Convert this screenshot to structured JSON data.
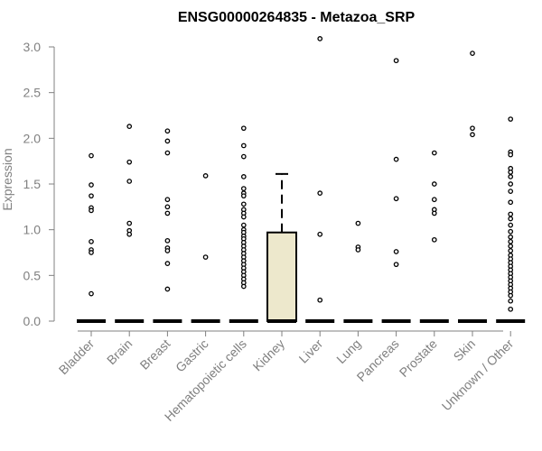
{
  "chart_data": {
    "type": "box",
    "title": "ENSG00000264835 - Metazoa_SRP",
    "ylabel": "Expression",
    "xlabel": "",
    "ylim": [
      0,
      3.1
    ],
    "yticks": [
      "0.0",
      "0.5",
      "1.0",
      "1.5",
      "2.0",
      "2.5",
      "3.0"
    ],
    "ytick_values": [
      0,
      0.5,
      1.0,
      1.5,
      2.0,
      2.5,
      3.0
    ],
    "categories": [
      "Bladder",
      "Brain",
      "Breast",
      "Gastric",
      "Hematopoietic cells",
      "Kidney",
      "Liver",
      "Lung",
      "Pancreas",
      "Prostate",
      "Skin",
      "Unknown / Other"
    ],
    "box_fill": "#ede8cc",
    "boxes": [
      {
        "category": "Bladder",
        "min": 0,
        "q1": 0,
        "median": 0,
        "q3": 0,
        "max": 0,
        "outliers": [
          1.81,
          1.49,
          1.37,
          1.24,
          1.21,
          0.87,
          0.78,
          0.75,
          0.3
        ]
      },
      {
        "category": "Brain",
        "min": 0,
        "q1": 0,
        "median": 0,
        "q3": 0,
        "max": 0,
        "outliers": [
          2.13,
          1.74,
          1.53,
          1.07,
          0.99,
          0.95
        ]
      },
      {
        "category": "Breast",
        "min": 0,
        "q1": 0,
        "median": 0,
        "q3": 0,
        "max": 0,
        "outliers": [
          2.08,
          1.97,
          1.84,
          1.33,
          1.25,
          1.18,
          0.88,
          0.8,
          0.77,
          0.63,
          0.35
        ]
      },
      {
        "category": "Gastric",
        "min": 0,
        "q1": 0,
        "median": 0,
        "q3": 0,
        "max": 0,
        "outliers": [
          1.59,
          0.7
        ]
      },
      {
        "category": "Hematopoietic cells",
        "min": 0,
        "q1": 0,
        "median": 0,
        "q3": 0,
        "max": 0,
        "outliers": [
          2.11,
          1.92,
          1.8,
          1.58,
          1.45,
          1.4,
          1.37,
          1.28,
          1.22,
          1.18,
          1.14,
          1.05,
          1.0,
          0.97,
          0.93,
          0.9,
          0.86,
          0.82,
          0.78,
          0.74,
          0.7,
          0.66,
          0.62,
          0.58,
          0.54,
          0.5,
          0.46,
          0.42,
          0.38
        ]
      },
      {
        "category": "Kidney",
        "min": 0,
        "q1": 0,
        "median": 0,
        "q3": 0.97,
        "max": 1.61,
        "outliers": []
      },
      {
        "category": "Liver",
        "min": 0,
        "q1": 0,
        "median": 0,
        "q3": 0,
        "max": 0,
        "outliers": [
          3.09,
          1.4,
          0.95,
          0.23
        ]
      },
      {
        "category": "Lung",
        "min": 0,
        "q1": 0,
        "median": 0,
        "q3": 0,
        "max": 0,
        "outliers": [
          1.07,
          0.81,
          0.78
        ]
      },
      {
        "category": "Pancreas",
        "min": 0,
        "q1": 0,
        "median": 0,
        "q3": 0,
        "max": 0,
        "outliers": [
          2.85,
          1.77,
          1.34,
          0.76,
          0.62
        ]
      },
      {
        "category": "Prostate",
        "min": 0,
        "q1": 0,
        "median": 0,
        "q3": 0,
        "max": 0,
        "outliers": [
          1.84,
          1.5,
          1.33,
          1.22,
          1.18,
          0.89
        ]
      },
      {
        "category": "Skin",
        "min": 0,
        "q1": 0,
        "median": 0,
        "q3": 0,
        "max": 0,
        "outliers": [
          2.93,
          2.11,
          2.04
        ]
      },
      {
        "category": "Unknown / Other",
        "min": 0,
        "q1": 0,
        "median": 0,
        "q3": 0,
        "max": 0,
        "outliers": [
          2.21,
          1.85,
          1.82,
          1.67,
          1.63,
          1.58,
          1.5,
          1.42,
          1.3,
          1.17,
          1.12,
          1.05,
          0.98,
          0.92,
          0.87,
          0.82,
          0.77,
          0.72,
          0.68,
          0.64,
          0.6,
          0.56,
          0.52,
          0.48,
          0.44,
          0.4,
          0.36,
          0.32,
          0.28,
          0.22,
          0.13
        ]
      }
    ]
  }
}
